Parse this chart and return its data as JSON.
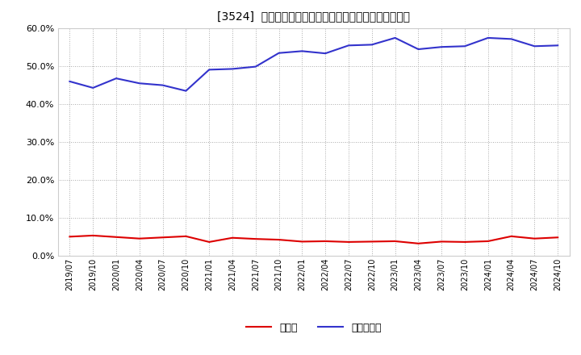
{
  "title": "[3524]  現預金、有利子負債の総資産に対する比率の推移",
  "x_labels": [
    "2019/07",
    "2019/10",
    "2020/01",
    "2020/04",
    "2020/07",
    "2020/10",
    "2021/01",
    "2021/04",
    "2021/07",
    "2021/10",
    "2022/01",
    "2022/04",
    "2022/07",
    "2022/10",
    "2023/01",
    "2023/04",
    "2023/07",
    "2023/10",
    "2024/01",
    "2024/04",
    "2024/07",
    "2024/10"
  ],
  "cash": [
    0.05,
    0.053,
    0.049,
    0.045,
    0.048,
    0.051,
    0.036,
    0.047,
    0.044,
    0.042,
    0.037,
    0.038,
    0.036,
    0.037,
    0.038,
    0.032,
    0.037,
    0.036,
    0.038,
    0.051,
    0.045,
    0.048
  ],
  "debt": [
    0.46,
    0.443,
    0.468,
    0.455,
    0.45,
    0.435,
    0.491,
    0.493,
    0.499,
    0.535,
    0.54,
    0.534,
    0.555,
    0.557,
    0.575,
    0.545,
    0.551,
    0.553,
    0.575,
    0.572,
    0.553,
    0.555
  ],
  "cash_color": "#dd0000",
  "debt_color": "#3333cc",
  "ylim": [
    0.0,
    0.6
  ],
  "yticks": [
    0.0,
    0.1,
    0.2,
    0.3,
    0.4,
    0.5,
    0.6
  ],
  "legend_cash": "現預金",
  "legend_debt": "有利子負債",
  "bg_color": "#ffffff",
  "plot_bg_color": "#ffffff",
  "grid_color": "#aaaaaa",
  "line_width": 1.5
}
